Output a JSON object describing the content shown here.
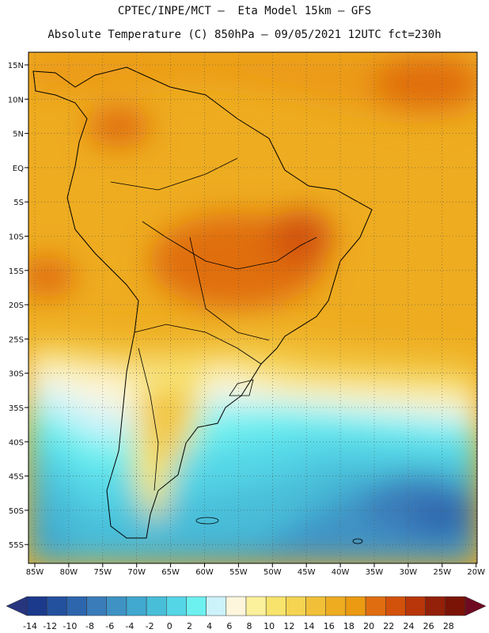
{
  "header": {
    "line1": "CPTEC/INPE/MCT –  Eta Model 15km – GFS",
    "line2": "Absolute Temperature (C) 850hPa – 09/05/2021 12UTC fct=230h"
  },
  "map": {
    "lat_labels": [
      "15N",
      "10N",
      "5N",
      "EQ",
      "5S",
      "10S",
      "15S",
      "20S",
      "25S",
      "30S",
      "35S",
      "40S",
      "45S",
      "50S",
      "55S"
    ],
    "lon_labels": [
      "85W",
      "80W",
      "75W",
      "70W",
      "65W",
      "60W",
      "55W",
      "50W",
      "45W",
      "40W",
      "35W",
      "30W",
      "25W",
      "20W"
    ]
  },
  "colorbar": {
    "labels": [
      "-14",
      "-12",
      "-10",
      "-8",
      "-6",
      "-4",
      "-2",
      "0",
      "2",
      "4",
      "6",
      "8",
      "10",
      "12",
      "14",
      "16",
      "18",
      "20",
      "22",
      "24",
      "26",
      "28"
    ],
    "colors": [
      "#1b3a8c",
      "#24519e",
      "#2e66ae",
      "#3a7cba",
      "#3f93c4",
      "#41a8cf",
      "#48bed9",
      "#55d6e6",
      "#6df0f0",
      "#cdf3fa",
      "#fdf6dc",
      "#fbf09c",
      "#f8e46c",
      "#f5d452",
      "#f1c038",
      "#eeac20",
      "#eb9a12",
      "#e06e10",
      "#d2520c",
      "#b8360a",
      "#932008",
      "#7a1407"
    ]
  }
}
